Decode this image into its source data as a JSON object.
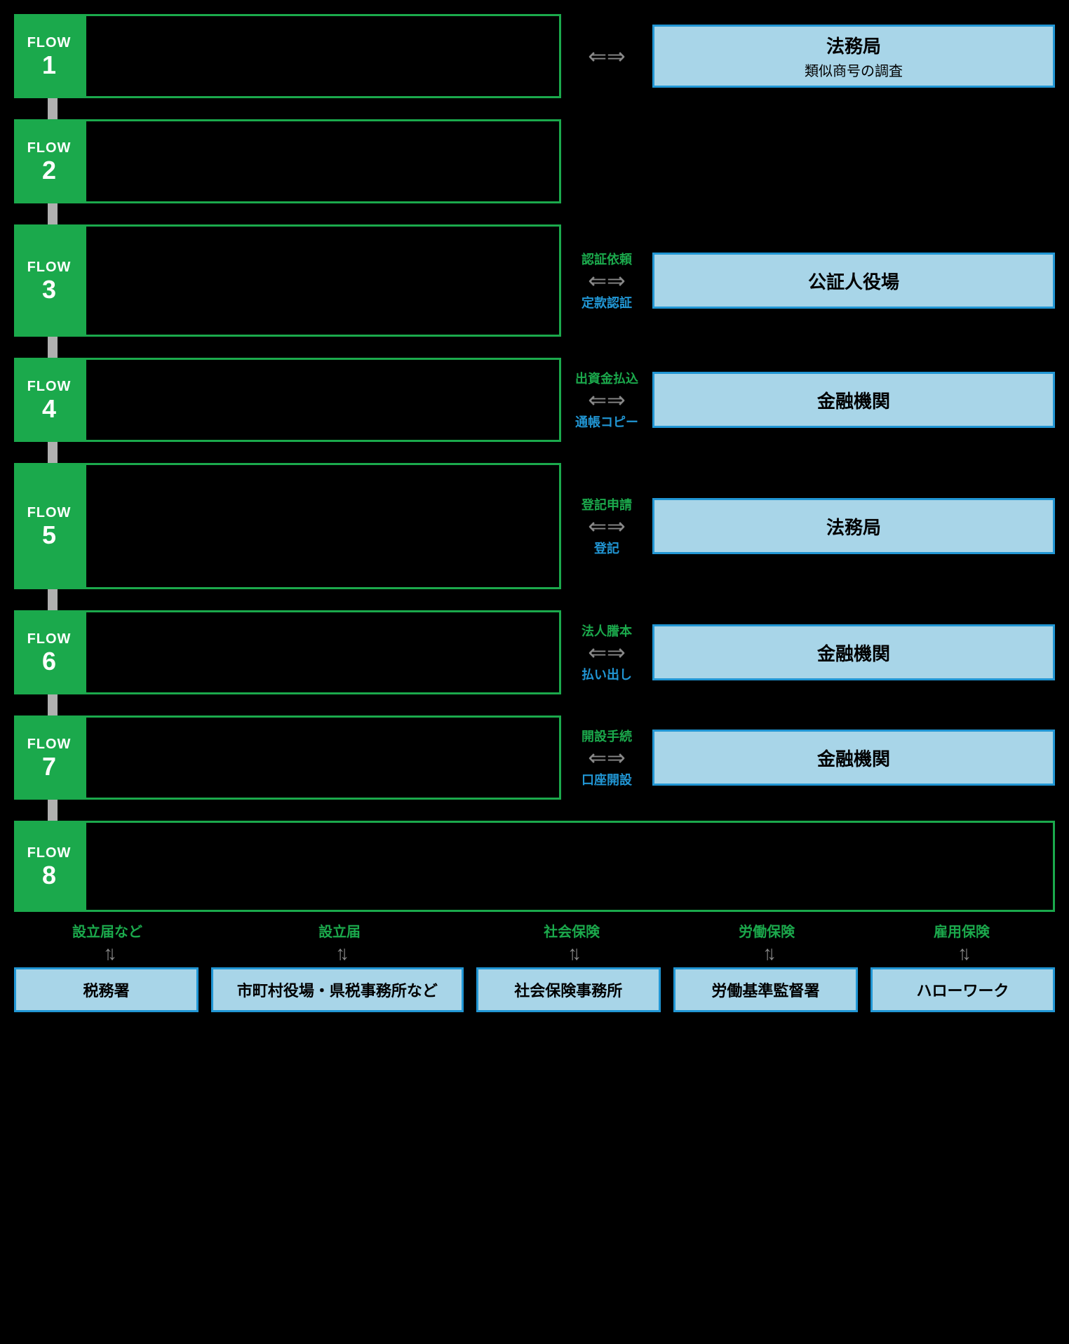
{
  "colors": {
    "green": "#1ba94c",
    "blue_border": "#2196d4",
    "blue_fill": "#a8d5e8",
    "grey_connector": "#b0b0b0",
    "arrow": "#888888",
    "background": "#000000"
  },
  "flows": [
    {
      "num": "1",
      "label": "FLOW",
      "height_class": "h1",
      "arrow": {
        "top": null,
        "bottom": null,
        "show": true
      },
      "dest": {
        "title": "法務局",
        "sub": "類似商号の調査"
      }
    },
    {
      "num": "2",
      "label": "FLOW",
      "height_class": "h2",
      "arrow": null,
      "dest": null
    },
    {
      "num": "3",
      "label": "FLOW",
      "height_class": "h3",
      "arrow": {
        "top": "認証依頼",
        "bottom": "定款認証",
        "show": true
      },
      "dest": {
        "title": "公証人役場",
        "sub": null
      }
    },
    {
      "num": "4",
      "label": "FLOW",
      "height_class": "h4",
      "arrow": {
        "top": "出資金払込",
        "bottom": "通帳コピー",
        "show": true
      },
      "dest": {
        "title": "金融機関",
        "sub": null
      }
    },
    {
      "num": "5",
      "label": "FLOW",
      "height_class": "h5",
      "arrow": {
        "top": "登記申請",
        "bottom": "登記",
        "show": true
      },
      "dest": {
        "title": "法務局",
        "sub": null
      }
    },
    {
      "num": "6",
      "label": "FLOW",
      "height_class": "h6",
      "arrow": {
        "top": "法人謄本",
        "bottom": "払い出し",
        "show": true
      },
      "dest": {
        "title": "金融機関",
        "sub": null
      }
    },
    {
      "num": "7",
      "label": "FLOW",
      "height_class": "h7",
      "arrow": {
        "top": "開設手続",
        "bottom": "口座開設",
        "show": true
      },
      "dest": {
        "title": "金融機関",
        "sub": null
      }
    },
    {
      "num": "8",
      "label": "FLOW",
      "height_class": "h8",
      "full": true,
      "arrow": null,
      "dest": null
    }
  ],
  "bottom": {
    "cols": [
      {
        "top": "設立届など",
        "box": "税務署",
        "wide": false
      },
      {
        "top": "設立届",
        "box": "市町村役場・県税事務所など",
        "wide": true
      },
      {
        "top": "社会保険",
        "box": "社会保険事務所",
        "wide": false
      },
      {
        "top": "労働保険",
        "box": "労働基準監督署",
        "wide": false
      },
      {
        "top": "雇用保険",
        "box": "ハローワーク",
        "wide": false
      }
    ]
  },
  "arrow_glyph_h": "⇐⇒",
  "arrow_glyph_v": "↑↓"
}
